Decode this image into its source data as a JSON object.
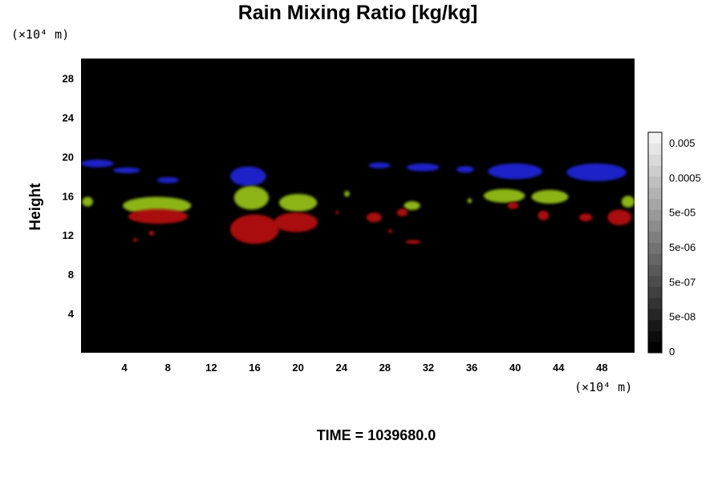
{
  "chart_data": {
    "type": "heatmap",
    "title": "Rain Mixing Ratio [kg/kg]",
    "xlabel": "",
    "ylabel": "Height",
    "x_unit": "(×10⁴ m)",
    "y_unit": "(×10⁴ m)",
    "xlim": [
      0,
      51
    ],
    "ylim": [
      0,
      30
    ],
    "x_ticks": [
      4,
      8,
      12,
      16,
      20,
      24,
      28,
      32,
      36,
      40,
      44,
      48
    ],
    "y_ticks": [
      4,
      8,
      12,
      16,
      20,
      24,
      28
    ],
    "grid": false,
    "background": "#000000",
    "colorbar": {
      "levels": 20,
      "min_color": "#000000",
      "max_color": "#f2f2f2",
      "tick_labels": [
        "0.005",
        "0.0005",
        "5e-05",
        "5e-06",
        "5e-07",
        "5e-08",
        "0"
      ]
    },
    "layers": [
      {
        "color": "#1a22c8",
        "blobs": [
          {
            "x": 1.5,
            "y": 19.3,
            "w": 3.0,
            "h": 0.8
          },
          {
            "x": 4.2,
            "y": 18.6,
            "w": 2.5,
            "h": 0.6
          },
          {
            "x": 8.0,
            "y": 17.6,
            "w": 2.0,
            "h": 0.6
          },
          {
            "x": 15.4,
            "y": 18.0,
            "w": 3.3,
            "h": 2.0
          },
          {
            "x": 27.5,
            "y": 19.1,
            "w": 2.0,
            "h": 0.6
          },
          {
            "x": 31.5,
            "y": 18.9,
            "w": 3.0,
            "h": 0.8
          },
          {
            "x": 35.4,
            "y": 18.7,
            "w": 1.6,
            "h": 0.7
          },
          {
            "x": 40.0,
            "y": 18.5,
            "w": 5.0,
            "h": 1.6
          },
          {
            "x": 47.5,
            "y": 18.4,
            "w": 5.5,
            "h": 1.8
          }
        ]
      },
      {
        "color": "#8cb418",
        "blobs": [
          {
            "x": 0.6,
            "y": 15.4,
            "w": 1.0,
            "h": 1.0
          },
          {
            "x": 7.0,
            "y": 15.0,
            "w": 6.3,
            "h": 1.8
          },
          {
            "x": 15.7,
            "y": 15.8,
            "w": 3.2,
            "h": 2.4
          },
          {
            "x": 20.0,
            "y": 15.3,
            "w": 3.5,
            "h": 1.8
          },
          {
            "x": 24.5,
            "y": 16.2,
            "w": 0.5,
            "h": 0.6
          },
          {
            "x": 30.5,
            "y": 15.0,
            "w": 1.5,
            "h": 0.9
          },
          {
            "x": 35.8,
            "y": 15.5,
            "w": 0.4,
            "h": 0.5
          },
          {
            "x": 39.0,
            "y": 16.0,
            "w": 3.8,
            "h": 1.4
          },
          {
            "x": 43.2,
            "y": 15.9,
            "w": 3.4,
            "h": 1.4
          },
          {
            "x": 50.4,
            "y": 15.4,
            "w": 1.2,
            "h": 1.2
          }
        ]
      },
      {
        "color": "#aa1010",
        "blobs": [
          {
            "x": 7.1,
            "y": 13.9,
            "w": 5.5,
            "h": 1.5
          },
          {
            "x": 5.0,
            "y": 11.5,
            "w": 0.4,
            "h": 0.4
          },
          {
            "x": 6.5,
            "y": 12.2,
            "w": 0.5,
            "h": 0.5
          },
          {
            "x": 16.0,
            "y": 12.6,
            "w": 4.5,
            "h": 3.0
          },
          {
            "x": 19.8,
            "y": 13.3,
            "w": 4.0,
            "h": 2.0
          },
          {
            "x": 23.6,
            "y": 14.3,
            "w": 0.3,
            "h": 0.4
          },
          {
            "x": 27.0,
            "y": 13.8,
            "w": 1.4,
            "h": 1.0
          },
          {
            "x": 28.5,
            "y": 12.4,
            "w": 0.4,
            "h": 0.4
          },
          {
            "x": 29.6,
            "y": 14.3,
            "w": 1.0,
            "h": 0.8
          },
          {
            "x": 30.6,
            "y": 11.3,
            "w": 1.4,
            "h": 0.4
          },
          {
            "x": 39.8,
            "y": 15.0,
            "w": 1.0,
            "h": 0.7
          },
          {
            "x": 42.6,
            "y": 14.0,
            "w": 1.0,
            "h": 1.0
          },
          {
            "x": 46.5,
            "y": 13.8,
            "w": 1.2,
            "h": 0.8
          },
          {
            "x": 49.6,
            "y": 13.8,
            "w": 2.2,
            "h": 1.6
          }
        ]
      }
    ]
  },
  "footer": {
    "time_text": "TIME = 1039680.0"
  }
}
